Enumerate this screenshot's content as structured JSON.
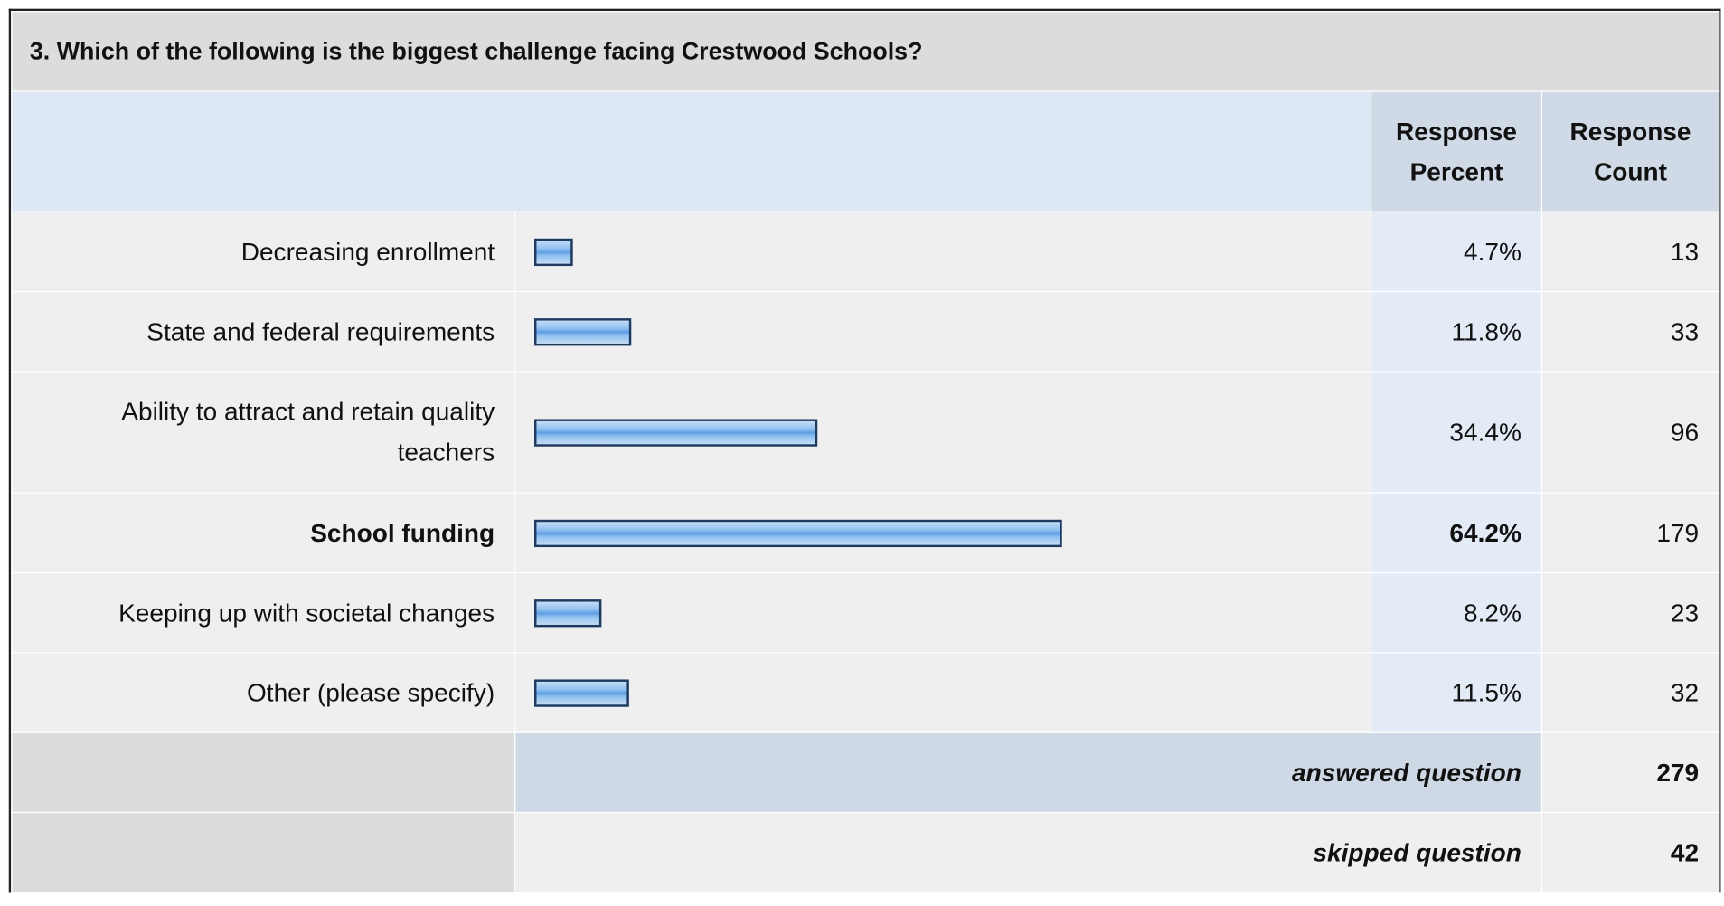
{
  "question": {
    "title": "3. Which of the following is the biggest challenge facing Crestwood Schools?"
  },
  "table": {
    "headers": [
      "Response Percent",
      "Response Count"
    ],
    "rows": [
      {
        "label": "Decreasing enrollment",
        "percent": {
          "value": 4.7,
          "label": "4.7%"
        },
        "count": 13
      },
      {
        "label": "State and federal requirements",
        "percent": {
          "value": 11.8,
          "label": "11.8%"
        },
        "count": 33
      },
      {
        "label": "Ability to attract and retain quality teachers",
        "percent": {
          "value": 34.4,
          "label": "34.4%"
        },
        "count": 96
      },
      {
        "label": "School funding",
        "percent": {
          "value": 64.2,
          "label": "64.2%"
        },
        "count": 179
      },
      {
        "label": "Keeping up with societal changes",
        "percent": {
          "value": 8.2,
          "label": "8.2%"
        },
        "count": 23
      },
      {
        "label": "Other (please specify)",
        "percent": {
          "value": 11.5,
          "label": "11.5%"
        },
        "count": 32
      }
    ],
    "answered": {
      "label": "answered question",
      "count": 279
    },
    "skipped": {
      "label": "skipped question",
      "count": 42
    }
  }
}
